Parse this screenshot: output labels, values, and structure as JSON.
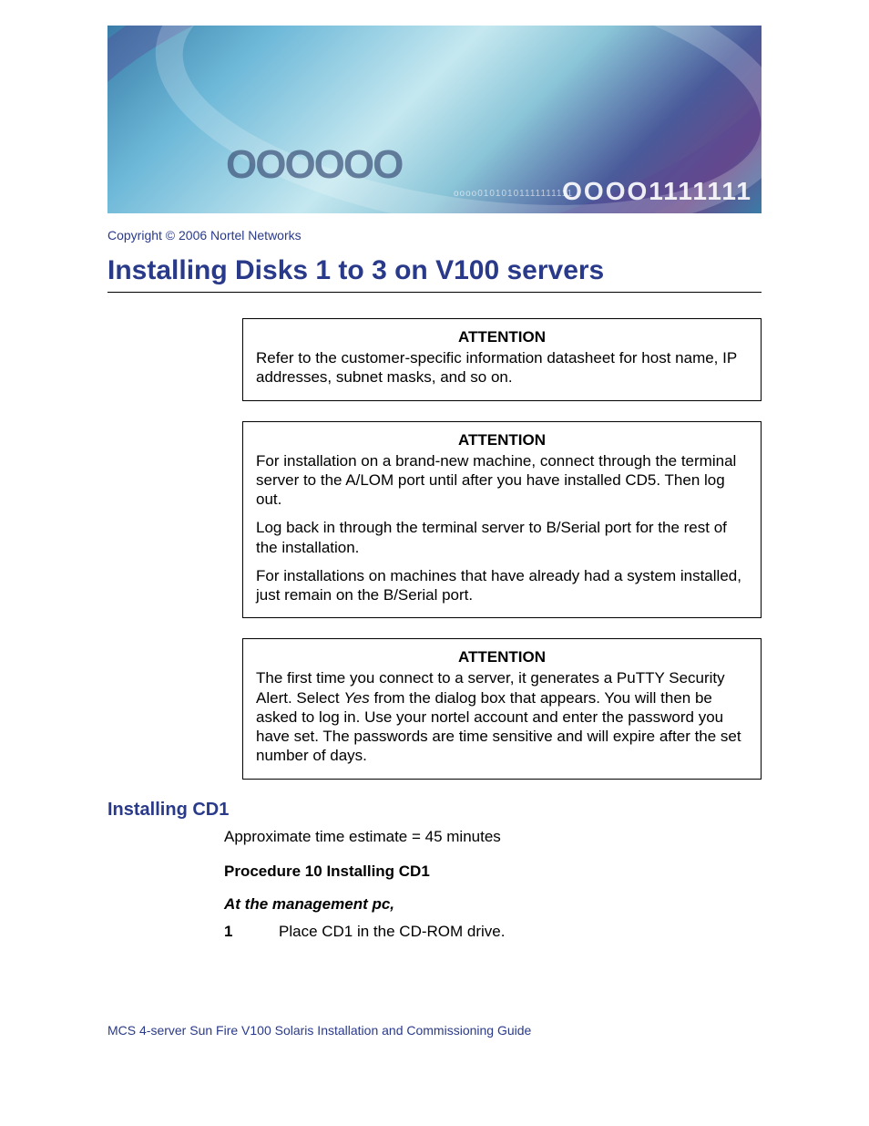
{
  "banner": {
    "gradient_start": "#3a7ca8",
    "gradient_mid": "#c5e8f0",
    "gradient_end": "#4a5a9a",
    "digits_large": "OOOO1111111",
    "digits_small": "oooo01010101111111111",
    "circles_text": "OOOOOO",
    "text_color": "#ffffff"
  },
  "copyright": "Copyright © 2006 Nortel Networks",
  "title": "Installing Disks 1 to 3 on V100 servers",
  "title_color": "#2a3a8a",
  "attention_boxes": [
    {
      "header": "ATTENTION",
      "paragraphs": [
        "Refer to the customer-specific information datasheet for host name, IP addresses, subnet masks, and so on."
      ]
    },
    {
      "header": "ATTENTION",
      "paragraphs": [
        "For installation on a brand-new machine, connect through the terminal server to the A/LOM port until after you have installed CD5. Then log out.",
        "Log back in through the terminal server to B/Serial port for the rest of the installation.",
        "For installations on machines that have already had a system installed, just remain on the B/Serial port."
      ]
    },
    {
      "header": "ATTENTION",
      "paragraphs_html": [
        "The first time you connect to a server, it generates a PuTTY Security Alert. Select <em>Yes</em> from the dialog box that appears. You will then be asked to log in. Use your nortel account and enter the password you have set. The passwords are time sensitive and will expire after the set number of days."
      ]
    }
  ],
  "section": {
    "heading": "Installing CD1",
    "time_estimate": "Approximate time estimate = 45 minutes",
    "procedure_title": "Procedure 10  Installing CD1",
    "procedure_subtitle": "At the management pc,",
    "steps": [
      {
        "number": "1",
        "text": "Place CD1 in the CD-ROM drive."
      }
    ]
  },
  "footer": "MCS 4-server Sun Fire V100 Solaris Installation and Commissioning Guide",
  "colors": {
    "heading_blue": "#2a3a8a",
    "text_black": "#000000",
    "border": "#000000",
    "background": "#ffffff"
  },
  "typography": {
    "body_font": "Arial, Helvetica, sans-serif",
    "title_size": 30,
    "section_heading_size": 20,
    "body_size": 17,
    "small_size": 14
  }
}
